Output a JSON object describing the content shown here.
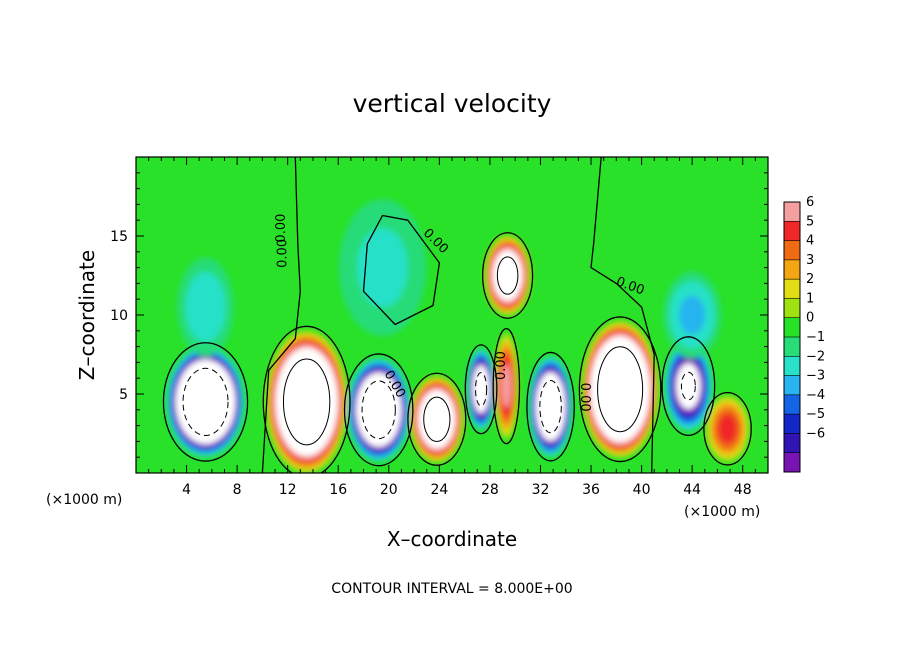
{
  "chart_data": {
    "type": "heatmap",
    "title": "vertical velocity",
    "xlabel": "X–coordinate",
    "ylabel": "Z–coordinate",
    "x_unit_left": "(×1000 m)",
    "x_unit_right": "(×1000 m)",
    "xlim": [
      0,
      50
    ],
    "ylim": [
      0,
      20
    ],
    "xticks": [
      4,
      8,
      12,
      16,
      20,
      24,
      28,
      32,
      36,
      40,
      44,
      48
    ],
    "yticks": [
      5,
      10,
      15
    ],
    "colorbar": {
      "ticks": [
        "6",
        "5",
        "4",
        "3",
        "2",
        "1",
        "0",
        "−1",
        "−2",
        "−3",
        "−4",
        "−5",
        "−6"
      ],
      "colors": [
        "#f5a0a0",
        "#f02828",
        "#f06a14",
        "#f5a514",
        "#e1dc14",
        "#a0e114",
        "#28e128",
        "#28dc78",
        "#28e1c8",
        "#28b4f0",
        "#1464e6",
        "#1428c8",
        "#3214b4",
        "#7814b4"
      ]
    },
    "contour_note": "CONTOUR INTERVAL = 8.000E+00",
    "contour_labels": [
      "0.00",
      "0.00",
      "0.00",
      "0.00",
      "0.00",
      "0.00",
      "0.00"
    ],
    "cells": [
      {
        "x": 5.5,
        "z": 4.5,
        "rx": 3.2,
        "rz": 3.6,
        "w": -14
      },
      {
        "x": 13.5,
        "z": 4.5,
        "rx": 3.3,
        "rz": 4.6,
        "w": 14
      },
      {
        "x": 19.2,
        "z": 4.0,
        "rx": 2.6,
        "rz": 3.4,
        "w": -12
      },
      {
        "x": 23.8,
        "z": 3.4,
        "rx": 2.2,
        "rz": 2.8,
        "w": 11
      },
      {
        "x": 27.3,
        "z": 5.3,
        "rx": 1.2,
        "rz": 2.7,
        "w": -9
      },
      {
        "x": 29.4,
        "z": 12.5,
        "rx": 1.9,
        "rz": 2.6,
        "w": 10
      },
      {
        "x": 29.3,
        "z": 5.5,
        "rx": 1.0,
        "rz": 3.5,
        "w": 6
      },
      {
        "x": 32.8,
        "z": 4.2,
        "rx": 1.8,
        "rz": 3.3,
        "w": -11
      },
      {
        "x": 38.3,
        "z": 5.3,
        "rx": 3.1,
        "rz": 4.4,
        "w": 15
      },
      {
        "x": 43.7,
        "z": 5.5,
        "rx": 2.0,
        "rz": 3.0,
        "w": -8
      },
      {
        "x": 46.8,
        "z": 2.8,
        "rx": 1.8,
        "rz": 2.2,
        "w": 5
      },
      {
        "x": 5.5,
        "z": 10.5,
        "rx": 2.5,
        "rz": 3.5,
        "w": -2
      },
      {
        "x": 19.5,
        "z": 13.0,
        "rx": 4.0,
        "rz": 5.0,
        "w": -1.5
      },
      {
        "x": 44.0,
        "z": 10.0,
        "rx": 2.5,
        "rz": 3.0,
        "w": -2.5
      }
    ]
  }
}
